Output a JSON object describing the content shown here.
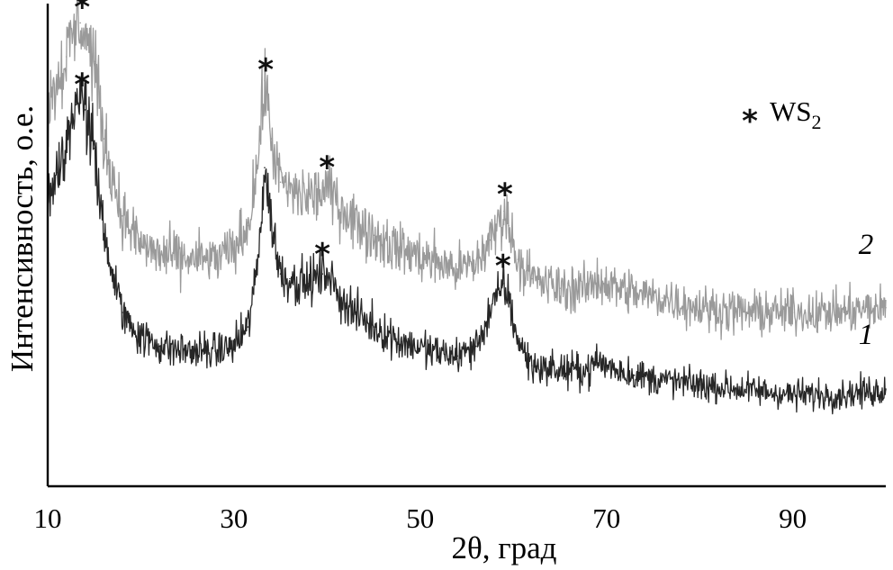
{
  "chart_data": {
    "type": "line",
    "title": "",
    "xlabel": "2θ, град",
    "ylabel": "Интенсивность, о.е.",
    "xlim": [
      10,
      100
    ],
    "ylim": [
      0,
      100
    ],
    "x_ticks": [
      "10",
      "30",
      "50",
      "70",
      "90"
    ],
    "y_ticks_shown": false,
    "grid": false,
    "colors": {
      "series_1": "#262626",
      "series_2": "#9a9a9a"
    },
    "legend": {
      "position": "top-right",
      "marker": "*",
      "label_main": "WS",
      "label_subscript": "2"
    },
    "series": [
      {
        "name": "1",
        "color": "#262626",
        "x": [
          10,
          11,
          12,
          13,
          13.5,
          14,
          15,
          16,
          18,
          20,
          22,
          25,
          28,
          30,
          31.5,
          32.5,
          33.3,
          34,
          35,
          36,
          38,
          39.5,
          40,
          41,
          43,
          45,
          48,
          51,
          54,
          56,
          57.5,
          58.5,
          59,
          59.5,
          60.5,
          62,
          65,
          68,
          69,
          70,
          73,
          76,
          80,
          85,
          90,
          95,
          100
        ],
        "y": [
          60,
          65,
          71,
          79,
          80,
          78,
          70,
          52,
          36,
          31,
          29,
          28,
          28,
          29,
          33,
          45,
          66,
          55,
          44,
          43,
          42,
          44,
          45,
          40,
          36,
          33,
          30,
          28,
          27,
          29,
          36,
          40,
          42,
          39,
          30,
          25,
          24,
          24,
          26,
          25,
          23,
          22,
          21,
          20,
          19,
          19,
          20
        ]
      },
      {
        "name": "2",
        "color": "#9a9a9a",
        "x": [
          10,
          11,
          12,
          13,
          13.5,
          14,
          15,
          16,
          18,
          20,
          22,
          25,
          28,
          30,
          31.5,
          32.5,
          33.3,
          34,
          35,
          36,
          38,
          39.5,
          40,
          41,
          43,
          45,
          48,
          51,
          54,
          56,
          57.5,
          58.5,
          59,
          59.5,
          60.5,
          62,
          65,
          68,
          69,
          70,
          73,
          76,
          80,
          85,
          90,
          95,
          100
        ],
        "y": [
          79,
          84,
          89,
          95,
          96,
          94,
          88,
          72,
          56,
          50,
          48,
          47,
          47,
          49,
          54,
          66,
          84,
          72,
          63,
          61,
          60,
          61,
          62,
          59,
          55,
          52,
          49,
          47,
          45,
          46,
          51,
          55,
          57,
          54,
          47,
          43,
          41,
          41,
          43,
          42,
          40,
          39,
          37,
          36,
          36,
          36,
          37
        ]
      }
    ],
    "peak_markers": [
      {
        "series": "2",
        "x": 13.7,
        "symbol": "*"
      },
      {
        "series": "1",
        "x": 13.7,
        "symbol": "*"
      },
      {
        "series": "2",
        "x": 33.4,
        "symbol": "*"
      },
      {
        "series": "2",
        "x": 40,
        "symbol": "*"
      },
      {
        "series": "1",
        "x": 39.5,
        "symbol": "*"
      },
      {
        "series": "2",
        "x": 59.1,
        "symbol": "*"
      },
      {
        "series": "1",
        "x": 58.9,
        "symbol": "*"
      }
    ],
    "series_labels": [
      {
        "text": "2",
        "series": "2"
      },
      {
        "text": "1",
        "series": "1"
      }
    ]
  }
}
